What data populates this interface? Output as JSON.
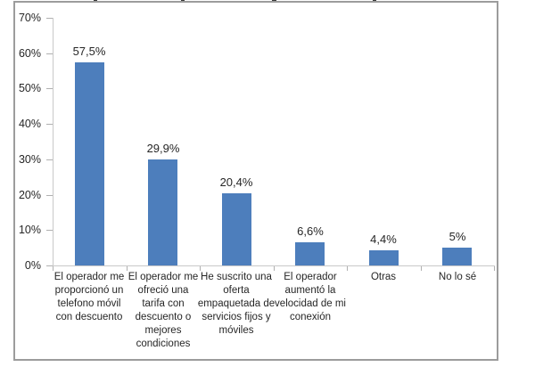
{
  "chart_data": {
    "type": "bar",
    "title": "",
    "title_note": "title cropped out of screenshot; only glyph fragments visible at top edge",
    "categories": [
      "El operador me proporcionó un telefono móvil con descuento",
      "El operador me ofreció una tarifa con descuento o mejores condiciones",
      "He suscrito una oferta empaquetada de servicios fijos y móviles",
      "El operador aumentó la velocidad de mi conexión",
      "Otras",
      "No lo sé"
    ],
    "category_display_labels": [
      "El operador me\nproporcionó un\ntelefono móvil\ncon descuento",
      "El operador me\nofreció una\ntarifa con\ndescuento o\nmejores\ncondiciones",
      "He suscrito una\noferta\nempaquetada de\nservicios fijos y\nmóviles",
      "El operador\naumentó la\nvelocidad de mi\nconexión",
      "Otras",
      "No lo sé"
    ],
    "values": [
      57.5,
      29.9,
      20.4,
      6.6,
      4.4,
      5
    ],
    "value_labels": [
      "57,5%",
      "29,9%",
      "20,4%",
      "6,6%",
      "4,4%",
      "5%"
    ],
    "xlabel": "",
    "ylabel": "",
    "ylim": [
      0,
      70
    ],
    "y_ticks": [
      0,
      10,
      20,
      30,
      40,
      50,
      60,
      70
    ],
    "y_tick_labels": [
      "0%",
      "10%",
      "20%",
      "30%",
      "40%",
      "50%",
      "60%",
      "70%"
    ],
    "grid": false,
    "legend": "none",
    "bar_color": "#4d7ebc"
  },
  "colors": {
    "bar": "#4d7ebc",
    "axis_line": "#c9c9c9",
    "tick": "#b0b0b0",
    "frame_border": "#9c9c9c",
    "text": "#262626",
    "title_fragment": "#3a3a3a"
  }
}
